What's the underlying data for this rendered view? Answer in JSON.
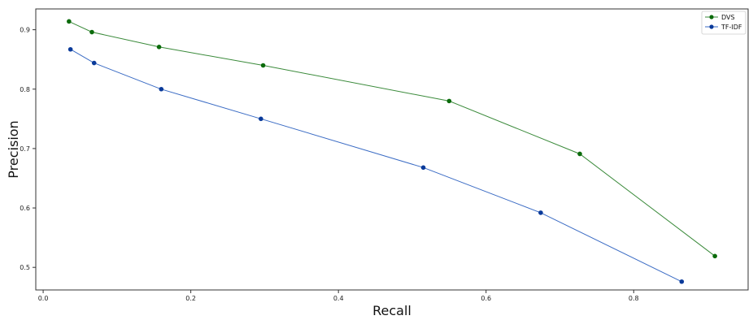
{
  "chart_data": {
    "type": "line",
    "xlabel": "Recall",
    "ylabel": "Precision",
    "xlim": [
      -0.01,
      0.955
    ],
    "ylim": [
      0.462,
      0.935
    ],
    "x_ticks": [
      0.0,
      0.2,
      0.4,
      0.6,
      0.8
    ],
    "x_tick_labels": [
      "0.0",
      "0.2",
      "0.4",
      "0.6",
      "0.8"
    ],
    "y_ticks": [
      0.5,
      0.6,
      0.7,
      0.8,
      0.9
    ],
    "y_tick_labels": [
      "0.5",
      "0.6",
      "0.7",
      "0.8",
      "0.9"
    ],
    "grid": false,
    "legend_position": "top-right",
    "series": [
      {
        "name": "DVS",
        "line_color": "#3a8a3a",
        "marker_color": "#0b6b0b",
        "x": [
          0.035,
          0.066,
          0.157,
          0.298,
          0.55,
          0.727,
          0.91
        ],
        "y": [
          0.914,
          0.896,
          0.871,
          0.84,
          0.78,
          0.691,
          0.519
        ]
      },
      {
        "name": "TF-IDF",
        "line_color": "#3a6bc4",
        "marker_color": "#0a3a9a",
        "x": [
          0.037,
          0.069,
          0.16,
          0.295,
          0.515,
          0.674,
          0.865
        ],
        "y": [
          0.867,
          0.844,
          0.8,
          0.75,
          0.668,
          0.592,
          0.476
        ]
      }
    ]
  }
}
